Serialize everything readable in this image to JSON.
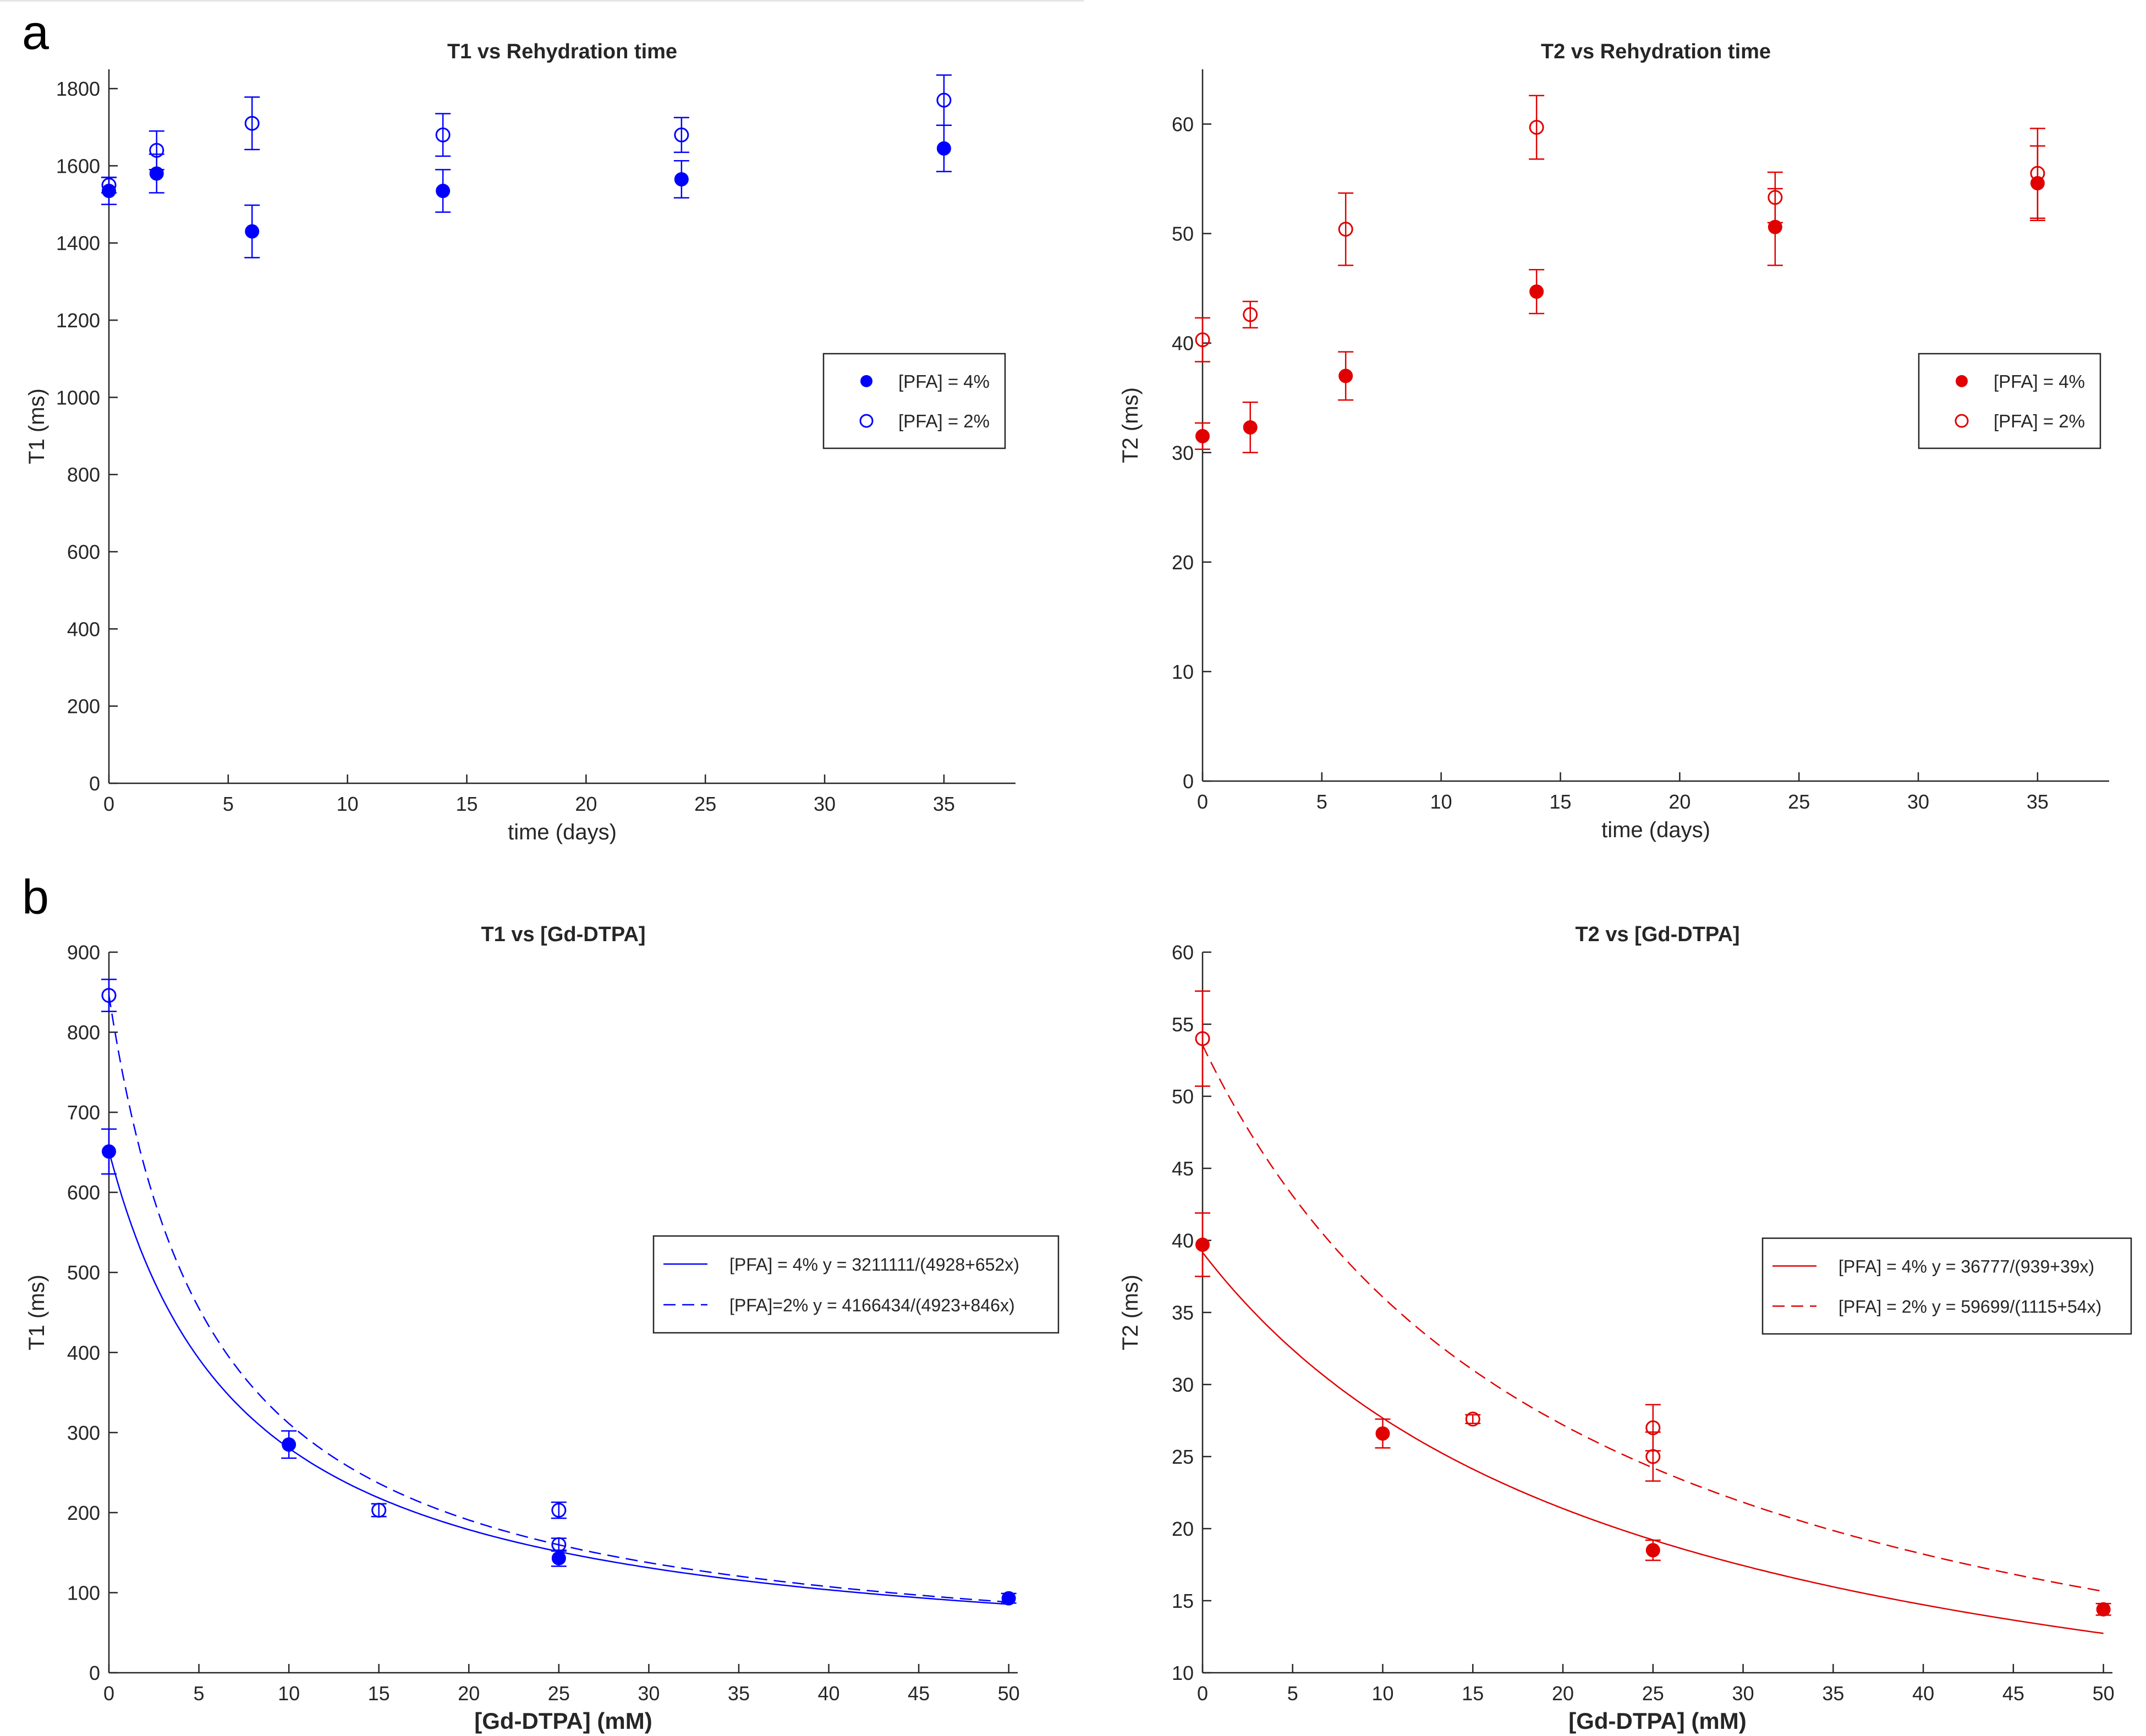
{
  "panel_labels": [
    "a",
    "b"
  ],
  "chart_data": [
    {
      "id": "t1-rehydration",
      "type": "scatter",
      "title": "T1 vs Rehydration time",
      "xlabel": "time (days)",
      "ylabel": "T1 (ms)",
      "xlim": [
        0,
        38
      ],
      "ylim": [
        0,
        1850
      ],
      "xticks": [
        0,
        5,
        10,
        15,
        20,
        25,
        30,
        35
      ],
      "yticks": [
        0,
        200,
        400,
        600,
        800,
        1000,
        1200,
        1400,
        1600,
        1800
      ],
      "color": "#0000ff",
      "legend_position": "right-middle",
      "series": [
        {
          "name": "[PFA] = 4%",
          "marker": "filled",
          "x": [
            0,
            2,
            6,
            14,
            24,
            35
          ],
          "y": [
            1535,
            1580,
            1430,
            1535,
            1565,
            1645
          ],
          "err": [
            35,
            50,
            68,
            55,
            48,
            60
          ]
        },
        {
          "name": "[PFA] = 2%",
          "marker": "open",
          "x": [
            0,
            2,
            6,
            14,
            24,
            35
          ],
          "y": [
            1550,
            1640,
            1710,
            1680,
            1680,
            1770
          ],
          "err": [
            20,
            50,
            68,
            55,
            45,
            65
          ]
        }
      ]
    },
    {
      "id": "t2-rehydration",
      "type": "scatter",
      "title": "T2 vs Rehydration time",
      "xlabel": "time (days)",
      "ylabel": "T2 (ms)",
      "xlim": [
        0,
        38
      ],
      "ylim": [
        0,
        65
      ],
      "xticks": [
        0,
        5,
        10,
        15,
        20,
        25,
        30,
        35
      ],
      "yticks": [
        0,
        10,
        20,
        30,
        40,
        50,
        60
      ],
      "color": "#e00000",
      "legend_position": "right-middle",
      "series": [
        {
          "name": "[PFA] = 4%",
          "marker": "filled",
          "x": [
            0,
            2,
            6,
            14,
            24,
            35
          ],
          "y": [
            31.5,
            32.3,
            37.0,
            44.7,
            50.6,
            54.6
          ],
          "err": [
            1.2,
            2.3,
            2.2,
            2.0,
            3.5,
            3.4
          ]
        },
        {
          "name": "[PFA] = 2%",
          "marker": "open",
          "x": [
            0,
            2,
            6,
            14,
            24,
            35
          ],
          "y": [
            40.3,
            42.6,
            50.4,
            59.7,
            53.3,
            55.5
          ],
          "err": [
            2.0,
            1.2,
            3.3,
            2.9,
            2.3,
            4.1
          ]
        }
      ]
    },
    {
      "id": "t1-gd",
      "type": "scatter",
      "title": "T1 vs [Gd-DTPA]",
      "xlabel": "[Gd-DTPA] (mM)",
      "ylabel": "T1 (ms)",
      "xlim": [
        0,
        50.5
      ],
      "ylim": [
        0,
        900
      ],
      "xticks": [
        0,
        5,
        10,
        15,
        20,
        25,
        30,
        35,
        40,
        45,
        50
      ],
      "yticks": [
        0,
        100,
        200,
        300,
        400,
        500,
        600,
        700,
        800,
        900
      ],
      "color": "#0000ff",
      "legend_position": "right-middle",
      "series": [
        {
          "name": "[PFA] = 4% y = 3211111/(4928+652x)",
          "marker": "filled",
          "line": "solid",
          "fit": {
            "num": 3211111,
            "a": 4928,
            "b": 652
          },
          "x": [
            0,
            10,
            25,
            50
          ],
          "y": [
            651,
            285,
            143,
            93
          ],
          "err": [
            28,
            17,
            10,
            6
          ]
        },
        {
          "name": "[PFA]=2% y = 4166434/(4923+846x)",
          "marker": "open",
          "line": "dashed",
          "fit": {
            "num": 4166434,
            "a": 4923,
            "b": 846
          },
          "x": [
            0,
            15,
            25,
            25
          ],
          "y": [
            846,
            203,
            203,
            160
          ],
          "err": [
            20,
            8,
            10,
            8
          ]
        }
      ]
    },
    {
      "id": "t2-gd",
      "type": "scatter",
      "title": "T2 vs [Gd-DTPA]",
      "xlabel": "[Gd-DTPA] (mM)",
      "ylabel": "T2 (ms)",
      "xlim": [
        0,
        50.5
      ],
      "ylim": [
        10,
        60
      ],
      "xticks": [
        0,
        5,
        10,
        15,
        20,
        25,
        30,
        35,
        40,
        45,
        50
      ],
      "yticks": [
        10,
        15,
        20,
        25,
        30,
        35,
        40,
        45,
        50,
        55,
        60
      ],
      "color": "#e00000",
      "legend_position": "right-middle",
      "series": [
        {
          "name": "[PFA] = 4% y = 36777/(939+39x)",
          "marker": "filled",
          "line": "solid",
          "fit": {
            "num": 36777,
            "a": 939,
            "b": 39
          },
          "x": [
            0,
            10,
            25,
            50
          ],
          "y": [
            39.7,
            26.6,
            18.5,
            14.4
          ],
          "err": [
            2.2,
            1.0,
            0.7,
            0.4
          ]
        },
        {
          "name": "[PFA] = 2% y = 59699/(1115+54x)",
          "marker": "open",
          "line": "dashed",
          "fit": {
            "num": 59699,
            "a": 1115,
            "b": 54
          },
          "x": [
            0,
            15,
            25,
            25
          ],
          "y": [
            54.0,
            27.6,
            27.0,
            25.0
          ],
          "err": [
            3.3,
            0.3,
            1.6,
            1.7
          ]
        }
      ]
    }
  ]
}
